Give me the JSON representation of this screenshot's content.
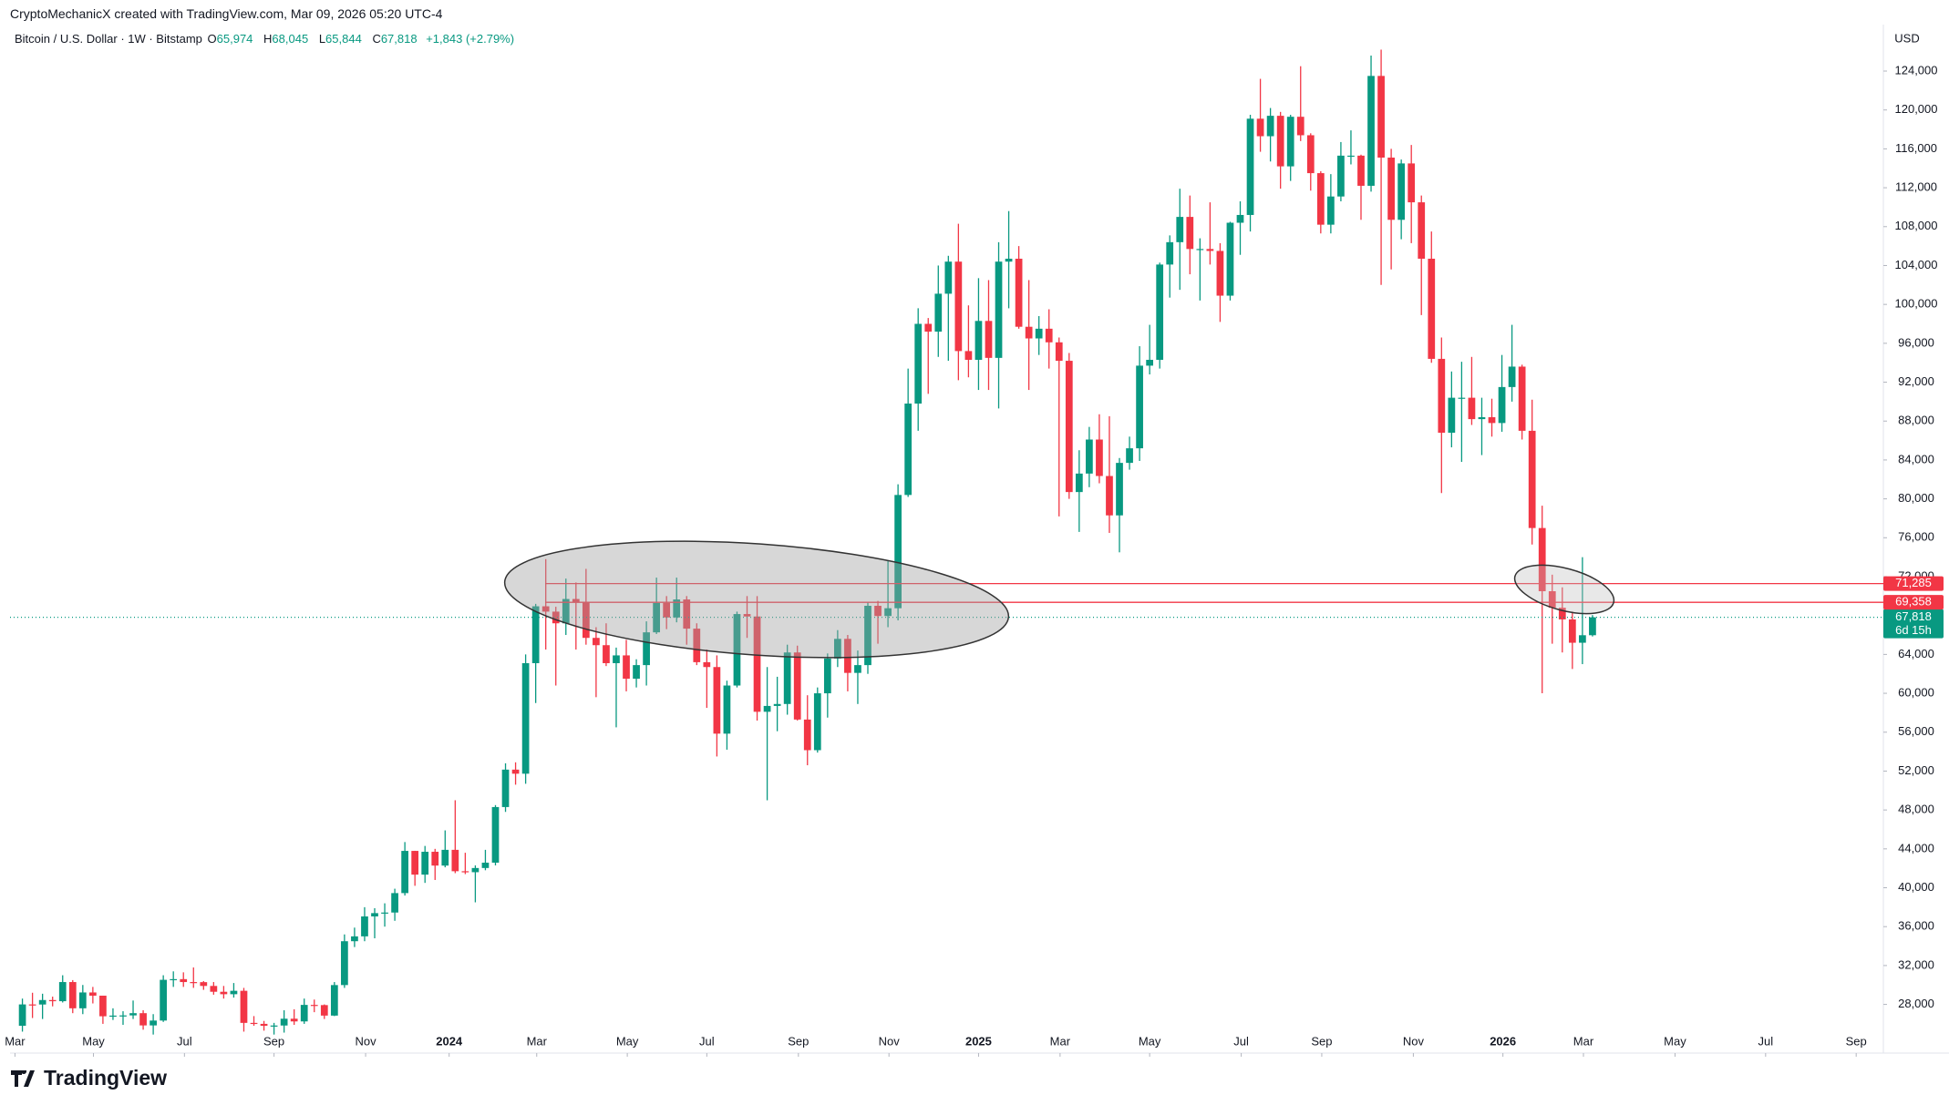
{
  "header": "CryptoMechanicX created with TradingView.com, Mar 09, 2026 05:20 UTC-4",
  "legend": {
    "title": "Bitcoin / U.S. Dollar · 1W · Bitstamp",
    "items": [
      {
        "key": "O",
        "value": "65,974"
      },
      {
        "key": "H",
        "value": "68,045"
      },
      {
        "key": "L",
        "value": "65,844"
      },
      {
        "key": "C",
        "value": "67,818"
      }
    ],
    "change": "+1,843 (+2.79%)"
  },
  "currency": "USD",
  "countdown": "6d 15h",
  "brand": "TradingView",
  "chart_data": {
    "type": "candlestick",
    "up_color": "#089981",
    "down_color": "#f23645",
    "open": [
      25800,
      28000,
      27990,
      28450,
      28330,
      30300,
      27600,
      29230,
      28900,
      26780,
      26850,
      26870,
      27100,
      25840,
      26340,
      30530,
      30600,
      30300,
      30290,
      29900,
      29300,
      29050,
      29400,
      26100,
      26000,
      25800,
      25830,
      26530,
      26250,
      27950,
      27930,
      26850,
      29990,
      34500,
      35000,
      37050,
      37390,
      37450,
      39450,
      43790,
      41350,
      43700,
      42280,
      43900,
      41700,
      41600,
      42030,
      42580,
      48300,
      52150,
      51730,
      63100,
      68950,
      68400,
      67200,
      69700,
      69360,
      65700,
      64950,
      63100,
      63900,
      61500,
      62900,
      66270,
      69300,
      67800,
      69650,
      66650,
      63200,
      62700,
      55850,
      60800,
      68150,
      67900,
      58100,
      58700,
      58900,
      64200,
      57300,
      54150,
      60000,
      63580,
      65600,
      62100,
      62900,
      69000,
      67950,
      68750,
      80400,
      89800,
      98000,
      97200,
      101100,
      104400,
      95200,
      94300,
      98300,
      94500,
      104400,
      104700,
      97700,
      96500,
      97500,
      96100,
      94200,
      80700,
      82600,
      86100,
      82350,
      78300,
      83700,
      85200,
      93700,
      94300,
      104100,
      106400,
      109000,
      105700,
      105700,
      105500,
      100900,
      108400,
      109200,
      119100,
      117300,
      119400,
      114200,
      119300,
      117400,
      113500,
      108200,
      111100,
      115300,
      115300,
      112200,
      123500,
      115100,
      108700,
      114500,
      110500,
      104700,
      94400,
      86800,
      90400,
      90400,
      88200,
      88400,
      87800,
      91500,
      93600,
      87000,
      77000,
      70500,
      68800,
      67600,
      65200,
      65974
    ],
    "high": [
      28600,
      29200,
      29100,
      28800,
      31000,
      30500,
      30000,
      29800,
      28900,
      27600,
      27300,
      28400,
      27400,
      27000,
      31000,
      31400,
      31300,
      31800,
      30400,
      30300,
      29900,
      30200,
      29700,
      26800,
      26300,
      26100,
      27400,
      27500,
      28600,
      28500,
      28000,
      30300,
      35200,
      35900,
      38000,
      37900,
      38400,
      39900,
      44700,
      43800,
      44300,
      44000,
      45900,
      49000,
      43600,
      42300,
      43900,
      48500,
      52800,
      52900,
      64000,
      69200,
      73800,
      68900,
      71800,
      71400,
      72800,
      66800,
      67200,
      64700,
      65500,
      63500,
      67400,
      71900,
      70000,
      71900,
      70000,
      67200,
      64500,
      63900,
      61300,
      68400,
      70000,
      70000,
      62700,
      61700,
      65000,
      64900,
      59800,
      60600,
      64100,
      66500,
      66000,
      64400,
      69400,
      69500,
      73600,
      81500,
      93400,
      99600,
      98600,
      104000,
      105000,
      108300,
      99900,
      102700,
      102500,
      106400,
      109600,
      106000,
      102500,
      98800,
      99500,
      96600,
      95000,
      85000,
      87400,
      88700,
      88500,
      84200,
      86400,
      95700,
      97900,
      104300,
      107100,
      111900,
      111200,
      106800,
      110500,
      106300,
      108500,
      110600,
      119500,
      123200,
      120200,
      119800,
      119500,
      124500,
      117600,
      113700,
      113400,
      116700,
      117900,
      115400,
      125600,
      126200,
      116000,
      114900,
      116400,
      111200,
      107500,
      96600,
      93100,
      94100,
      94600,
      90400,
      90300,
      94800,
      97900,
      93800,
      90200,
      79300,
      72200,
      70900,
      68400,
      74000,
      68045
    ],
    "low": [
      25200,
      26600,
      26500,
      27800,
      28200,
      27100,
      27000,
      28100,
      26000,
      26400,
      25900,
      26500,
      25400,
      24900,
      26200,
      29800,
      29800,
      29700,
      29500,
      29000,
      28600,
      28700,
      25200,
      25800,
      25300,
      24900,
      25100,
      25900,
      26000,
      27200,
      26500,
      26800,
      29700,
      33900,
      34500,
      34800,
      36000,
      36600,
      39200,
      40200,
      40500,
      40800,
      42100,
      41500,
      41400,
      38500,
      41800,
      42300,
      47800,
      50600,
      50700,
      59000,
      64500,
      60800,
      66000,
      64500,
      65000,
      59600,
      62800,
      56500,
      60200,
      60600,
      60800,
      66100,
      66600,
      67300,
      65000,
      62900,
      58500,
      53500,
      54200,
      60600,
      65700,
      57200,
      49000,
      56100,
      57800,
      57200,
      52600,
      53900,
      57500,
      62700,
      60200,
      58900,
      62000,
      65100,
      66800,
      67500,
      80200,
      87000,
      90800,
      94600,
      94200,
      92200,
      92500,
      91200,
      91200,
      89300,
      99600,
      97500,
      91200,
      94800,
      93400,
      78200,
      80000,
      76600,
      81200,
      81600,
      76500,
      74500,
      83000,
      83900,
      92800,
      93400,
      100700,
      101500,
      103100,
      100400,
      104100,
      98200,
      100400,
      105100,
      107500,
      115700,
      114700,
      111900,
      112700,
      116800,
      111700,
      107300,
      107300,
      110600,
      114400,
      108700,
      111600,
      102000,
      103600,
      106700,
      106300,
      98900,
      94000,
      80600,
      85300,
      83800,
      87600,
      84500,
      86400,
      86900,
      90000,
      86100,
      75300,
      60000,
      65100,
      64200,
      62500,
      63000,
      65844
    ],
    "close": [
      28000,
      27990,
      28450,
      28330,
      30300,
      27600,
      29230,
      28900,
      26780,
      26850,
      26870,
      27100,
      25840,
      26340,
      30530,
      30600,
      30300,
      30290,
      29900,
      29300,
      29050,
      29400,
      26100,
      26000,
      25800,
      25830,
      26530,
      26250,
      27950,
      27930,
      26850,
      29990,
      34500,
      35000,
      37050,
      37390,
      37450,
      39450,
      43790,
      41350,
      43700,
      42280,
      43900,
      41700,
      41600,
      42030,
      42580,
      48300,
      52150,
      51730,
      63100,
      68950,
      68400,
      67200,
      69700,
      69360,
      65700,
      64950,
      63100,
      63900,
      61500,
      62900,
      66270,
      69300,
      67800,
      69650,
      66650,
      63200,
      62700,
      55850,
      60800,
      68150,
      67900,
      58100,
      58700,
      58900,
      64200,
      57300,
      54150,
      60000,
      63580,
      65600,
      62100,
      62900,
      69000,
      67950,
      68750,
      80400,
      89800,
      98000,
      97200,
      101100,
      104400,
      95200,
      94300,
      98300,
      94500,
      104400,
      104700,
      97700,
      96500,
      97500,
      96100,
      94200,
      80700,
      82600,
      86100,
      82350,
      78300,
      83700,
      85200,
      93700,
      94300,
      104100,
      106400,
      109000,
      105700,
      105700,
      105500,
      100900,
      108400,
      109200,
      119100,
      117300,
      119400,
      114200,
      119300,
      117400,
      113500,
      108200,
      111100,
      115300,
      115300,
      112200,
      123500,
      115100,
      108700,
      114500,
      110500,
      104700,
      94400,
      86800,
      90400,
      90400,
      88200,
      88400,
      87800,
      91500,
      93600,
      87000,
      77000,
      70500,
      68800,
      67600,
      65200,
      65974,
      67818
    ],
    "xlim": [
      -1.23,
      184.9
    ],
    "xticks": [
      {
        "value": -0.74,
        "label": "Mar"
      },
      {
        "value": 7.06,
        "label": "May"
      },
      {
        "value": 16.1,
        "label": "Jul"
      },
      {
        "value": 25.0,
        "label": "Sep"
      },
      {
        "value": 34.1,
        "label": "Nov"
      },
      {
        "value": 42.4,
        "label": "2024"
      },
      {
        "value": 51.1,
        "label": "Mar"
      },
      {
        "value": 60.1,
        "label": "May"
      },
      {
        "value": 68.0,
        "label": "Jul"
      },
      {
        "value": 77.1,
        "label": "Sep"
      },
      {
        "value": 86.1,
        "label": "Nov"
      },
      {
        "value": 95.0,
        "label": "2025"
      },
      {
        "value": 103.1,
        "label": "Mar"
      },
      {
        "value": 112.0,
        "label": "May"
      },
      {
        "value": 121.1,
        "label": "Jul"
      },
      {
        "value": 129.1,
        "label": "Sep"
      },
      {
        "value": 138.2,
        "label": "Nov"
      },
      {
        "value": 147.1,
        "label": "2026"
      },
      {
        "value": 155.1,
        "label": "Mar"
      },
      {
        "value": 164.2,
        "label": "May"
      },
      {
        "value": 173.2,
        "label": "Jul"
      },
      {
        "value": 182.2,
        "label": "Sep"
      }
    ],
    "ylim": [
      25150,
      128780
    ],
    "yticks": [
      {
        "value": 28000,
        "label": "28,000"
      },
      {
        "value": 32000,
        "label": "32,000"
      },
      {
        "value": 36000,
        "label": "36,000"
      },
      {
        "value": 40000,
        "label": "40,000"
      },
      {
        "value": 44000,
        "label": "44,000"
      },
      {
        "value": 48000,
        "label": "48,000"
      },
      {
        "value": 52000,
        "label": "52,000"
      },
      {
        "value": 56000,
        "label": "56,000"
      },
      {
        "value": 60000,
        "label": "60,000"
      },
      {
        "value": 64000,
        "label": "64,000"
      },
      {
        "value": 72000,
        "label": "72,000"
      },
      {
        "value": 76000,
        "label": "76,000"
      },
      {
        "value": 80000,
        "label": "80,000"
      },
      {
        "value": 84000,
        "label": "84,000"
      },
      {
        "value": 88000,
        "label": "88,000"
      },
      {
        "value": 92000,
        "label": "92,000"
      },
      {
        "value": 96000,
        "label": "96,000"
      },
      {
        "value": 100000,
        "label": "100,000"
      },
      {
        "value": 104000,
        "label": "104,000"
      },
      {
        "value": 108000,
        "label": "108,000"
      },
      {
        "value": 112000,
        "label": "112,000"
      },
      {
        "value": 116000,
        "label": "116,000"
      },
      {
        "value": 120000,
        "label": "120,000"
      },
      {
        "value": 124000,
        "label": "124,000"
      }
    ],
    "hlines": [
      {
        "value": 71285,
        "label": "71,285",
        "color": "#f23645"
      },
      {
        "value": 69358,
        "label": "69,358",
        "color": "#f23645"
      }
    ]
  }
}
